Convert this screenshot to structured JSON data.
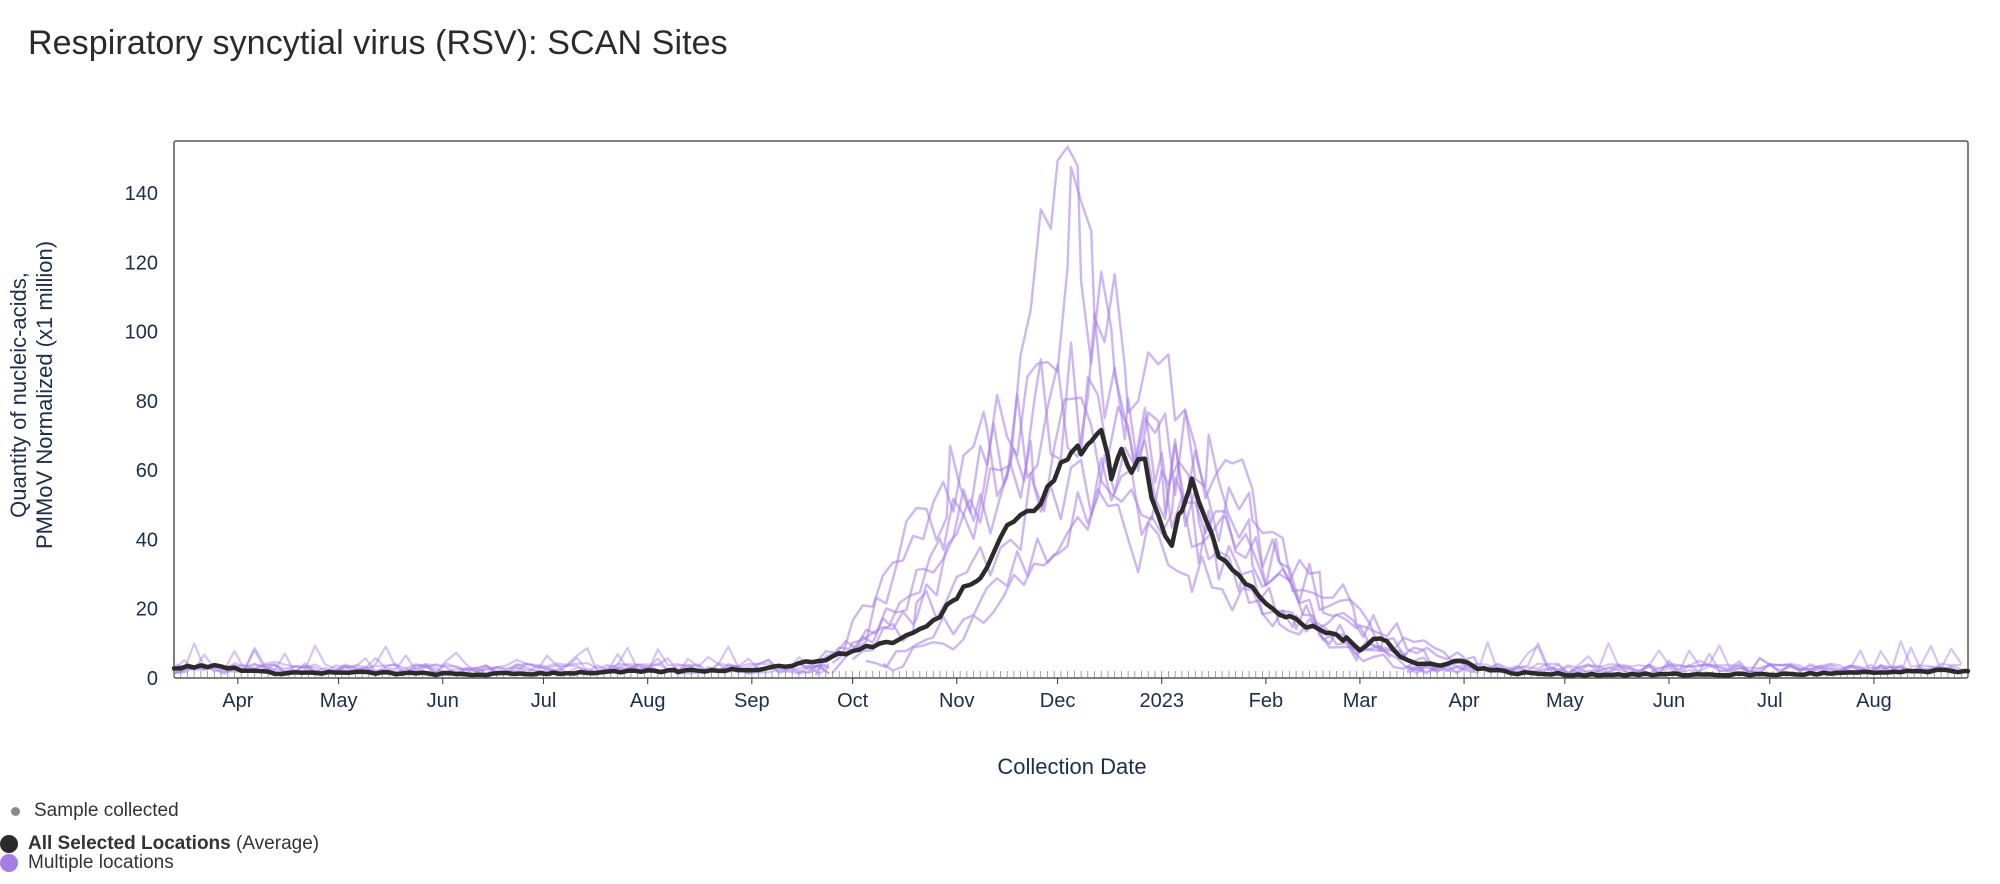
{
  "page": {
    "title": "Respiratory syncytial virus (RSV): SCAN Sites"
  },
  "chart_data": {
    "type": "line",
    "title": "Respiratory syncytial virus (RSV): SCAN Sites",
    "xlabel": "Collection Date",
    "ylabel_line1": "Quantity of nucleic-acids,",
    "ylabel_line2": "PMMoV Normalized (x1 million)",
    "ylim": [
      0,
      155
    ],
    "yticks": [
      0,
      20,
      40,
      60,
      80,
      100,
      120,
      140
    ],
    "xlim": [
      "2022-03-13",
      "2023-08-29"
    ],
    "xticks": [
      {
        "date": "2022-04-01",
        "label": "Apr"
      },
      {
        "date": "2022-05-01",
        "label": "May"
      },
      {
        "date": "2022-06-01",
        "label": "Jun"
      },
      {
        "date": "2022-07-01",
        "label": "Jul"
      },
      {
        "date": "2022-08-01",
        "label": "Aug"
      },
      {
        "date": "2022-09-01",
        "label": "Sep"
      },
      {
        "date": "2022-10-01",
        "label": "Oct"
      },
      {
        "date": "2022-11-01",
        "label": "Nov"
      },
      {
        "date": "2022-12-01",
        "label": "Dec"
      },
      {
        "date": "2023-01-01",
        "label": "2023"
      },
      {
        "date": "2023-02-01",
        "label": "Feb"
      },
      {
        "date": "2023-03-01",
        "label": "Mar"
      },
      {
        "date": "2023-04-01",
        "label": "Apr"
      },
      {
        "date": "2023-05-01",
        "label": "May"
      },
      {
        "date": "2023-06-01",
        "label": "Jun"
      },
      {
        "date": "2023-07-01",
        "label": "Jul"
      },
      {
        "date": "2023-08-01",
        "label": "Aug"
      }
    ],
    "colors": {
      "average": "#2b2b2b",
      "locations": "#a67ce6",
      "sample_marker": "#8a8a8a",
      "frame": "#555555"
    },
    "series": [
      {
        "name": "All Selected Locations (Average)",
        "points": [
          [
            "2022-03-13",
            3
          ],
          [
            "2022-03-25",
            3.5
          ],
          [
            "2022-04-10",
            1.5
          ],
          [
            "2022-05-10",
            1.5
          ],
          [
            "2022-06-10",
            1
          ],
          [
            "2022-07-10",
            1.5
          ],
          [
            "2022-08-10",
            2
          ],
          [
            "2022-09-01",
            2.5
          ],
          [
            "2022-09-15",
            4
          ],
          [
            "2022-09-25",
            6
          ],
          [
            "2022-10-05",
            9
          ],
          [
            "2022-10-15",
            11
          ],
          [
            "2022-10-25",
            16
          ],
          [
            "2022-11-01",
            24
          ],
          [
            "2022-11-08",
            30
          ],
          [
            "2022-11-12",
            37
          ],
          [
            "2022-11-16",
            44
          ],
          [
            "2022-11-20",
            48
          ],
          [
            "2022-11-24",
            47
          ],
          [
            "2022-11-28",
            55
          ],
          [
            "2022-12-02",
            60
          ],
          [
            "2022-12-05",
            67
          ],
          [
            "2022-12-08",
            64
          ],
          [
            "2022-12-11",
            68
          ],
          [
            "2022-12-14",
            72
          ],
          [
            "2022-12-17",
            60
          ],
          [
            "2022-12-20",
            65
          ],
          [
            "2022-12-23",
            61
          ],
          [
            "2022-12-27",
            62
          ],
          [
            "2022-12-31",
            45
          ],
          [
            "2023-01-04",
            38
          ],
          [
            "2023-01-07",
            50
          ],
          [
            "2023-01-10",
            58
          ],
          [
            "2023-01-14",
            48
          ],
          [
            "2023-01-18",
            36
          ],
          [
            "2023-01-22",
            31
          ],
          [
            "2023-01-26",
            27
          ],
          [
            "2023-01-30",
            24
          ],
          [
            "2023-02-03",
            20
          ],
          [
            "2023-02-08",
            17
          ],
          [
            "2023-02-13",
            15
          ],
          [
            "2023-02-20",
            13
          ],
          [
            "2023-02-25",
            11
          ],
          [
            "2023-03-01",
            8
          ],
          [
            "2023-03-05",
            12
          ],
          [
            "2023-03-09",
            11
          ],
          [
            "2023-03-13",
            6
          ],
          [
            "2023-03-18",
            4
          ],
          [
            "2023-03-25",
            4
          ],
          [
            "2023-03-31",
            5
          ],
          [
            "2023-04-05",
            3
          ],
          [
            "2023-04-15",
            1.5
          ],
          [
            "2023-05-01",
            1
          ],
          [
            "2023-06-01",
            1
          ],
          [
            "2023-07-01",
            1
          ],
          [
            "2023-08-01",
            1.5
          ],
          [
            "2023-08-20",
            2
          ],
          [
            "2023-08-29",
            2
          ]
        ]
      },
      {
        "name": "Multiple locations",
        "lines": [
          [
            [
              "2022-09-20",
              2
            ],
            [
              "2022-10-05",
              12
            ],
            [
              "2022-10-20",
              42
            ],
            [
              "2022-10-30",
              55
            ],
            [
              "2022-11-10",
              70
            ],
            [
              "2022-11-25",
              90
            ],
            [
              "2022-12-05",
              128
            ],
            [
              "2022-12-12",
              110
            ],
            [
              "2022-12-22",
              95
            ],
            [
              "2023-01-05",
              80
            ],
            [
              "2023-01-15",
              60
            ],
            [
              "2023-01-28",
              35
            ],
            [
              "2023-02-15",
              15
            ],
            [
              "2023-03-05",
              5
            ],
            [
              "2023-03-20",
              2
            ]
          ],
          [
            [
              "2022-09-15",
              3
            ],
            [
              "2022-10-01",
              8
            ],
            [
              "2022-10-20",
              20
            ],
            [
              "2022-11-05",
              45
            ],
            [
              "2022-11-20",
              80
            ],
            [
              "2022-12-01",
              141
            ],
            [
              "2022-12-08",
              120
            ],
            [
              "2022-12-18",
              90
            ],
            [
              "2023-01-01",
              55
            ],
            [
              "2023-01-20",
              40
            ],
            [
              "2023-02-05",
              25
            ],
            [
              "2023-02-25",
              10
            ],
            [
              "2023-03-15",
              3
            ]
          ],
          [
            [
              "2022-09-25",
              3
            ],
            [
              "2022-10-12",
              15
            ],
            [
              "2022-10-28",
              38
            ],
            [
              "2022-11-12",
              60
            ],
            [
              "2022-11-26",
              78
            ],
            [
              "2022-12-10",
              85
            ],
            [
              "2022-12-24",
              70
            ],
            [
              "2023-01-08",
              62
            ],
            [
              "2023-01-22",
              55
            ],
            [
              "2023-02-05",
              35
            ],
            [
              "2023-02-20",
              22
            ],
            [
              "2023-03-08",
              10
            ],
            [
              "2023-03-25",
              4
            ]
          ],
          [
            [
              "2022-10-01",
              4
            ],
            [
              "2022-10-20",
              18
            ],
            [
              "2022-11-05",
              30
            ],
            [
              "2022-11-20",
              45
            ],
            [
              "2022-12-05",
              60
            ],
            [
              "2022-12-20",
              55
            ],
            [
              "2023-01-05",
              48
            ],
            [
              "2023-01-20",
              40
            ],
            [
              "2023-02-05",
              32
            ],
            [
              "2023-02-18",
              25
            ],
            [
              "2023-03-05",
              15
            ],
            [
              "2023-03-20",
              8
            ],
            [
              "2023-04-05",
              4
            ]
          ],
          [
            [
              "2022-10-05",
              3
            ],
            [
              "2022-10-25",
              12
            ],
            [
              "2022-11-10",
              28
            ],
            [
              "2022-11-25",
              35
            ],
            [
              "2022-12-10",
              48
            ],
            [
              "2022-12-25",
              40
            ],
            [
              "2023-01-10",
              30
            ],
            [
              "2023-01-25",
              22
            ],
            [
              "2023-02-10",
              14
            ],
            [
              "2023-03-01",
              8
            ],
            [
              "2023-03-20",
              5
            ],
            [
              "2023-04-05",
              4
            ]
          ],
          [
            [
              "2022-09-25",
              4
            ],
            [
              "2022-10-10",
              25
            ],
            [
              "2022-10-28",
              50
            ],
            [
              "2022-11-10",
              65
            ],
            [
              "2022-11-28",
              72
            ],
            [
              "2022-12-12",
              88
            ],
            [
              "2022-12-22",
              75
            ],
            [
              "2023-01-02",
              62
            ],
            [
              "2023-01-12",
              45
            ],
            [
              "2023-01-25",
              30
            ],
            [
              "2023-02-10",
              18
            ],
            [
              "2023-03-01",
              12
            ],
            [
              "2023-03-15",
              7
            ]
          ],
          [
            [
              "2022-10-10",
              3
            ],
            [
              "2022-10-28",
              10
            ],
            [
              "2022-11-15",
              22
            ],
            [
              "2022-12-01",
              40
            ],
            [
              "2022-12-15",
              52
            ],
            [
              "2022-12-30",
              58
            ],
            [
              "2023-01-12",
              55
            ],
            [
              "2023-01-28",
              42
            ],
            [
              "2023-02-12",
              30
            ],
            [
              "2023-02-28",
              20
            ],
            [
              "2023-03-15",
              12
            ],
            [
              "2023-04-01",
              6
            ]
          ],
          [
            [
              "2022-09-20",
              3
            ],
            [
              "2022-10-05",
              14
            ],
            [
              "2022-10-22",
              32
            ],
            [
              "2022-11-08",
              50
            ],
            [
              "2022-11-24",
              58
            ],
            [
              "2022-12-08",
              70
            ],
            [
              "2022-12-20",
              62
            ],
            [
              "2023-01-03",
              55
            ],
            [
              "2023-01-18",
              36
            ],
            [
              "2023-02-02",
              22
            ],
            [
              "2023-02-20",
              12
            ],
            [
              "2023-03-10",
              6
            ]
          ]
        ]
      }
    ],
    "sample_tick_range": [
      "2022-03-13",
      "2023-08-29"
    ],
    "legend": [
      {
        "label": "Sample collected",
        "detail": "",
        "color": "#8a8a8a"
      },
      {
        "label": "All Selected Locations",
        "detail": "(Average)",
        "color": "#2b2b2b"
      },
      {
        "label": "Multiple locations",
        "detail": "",
        "color": "#a67ce6"
      }
    ]
  }
}
